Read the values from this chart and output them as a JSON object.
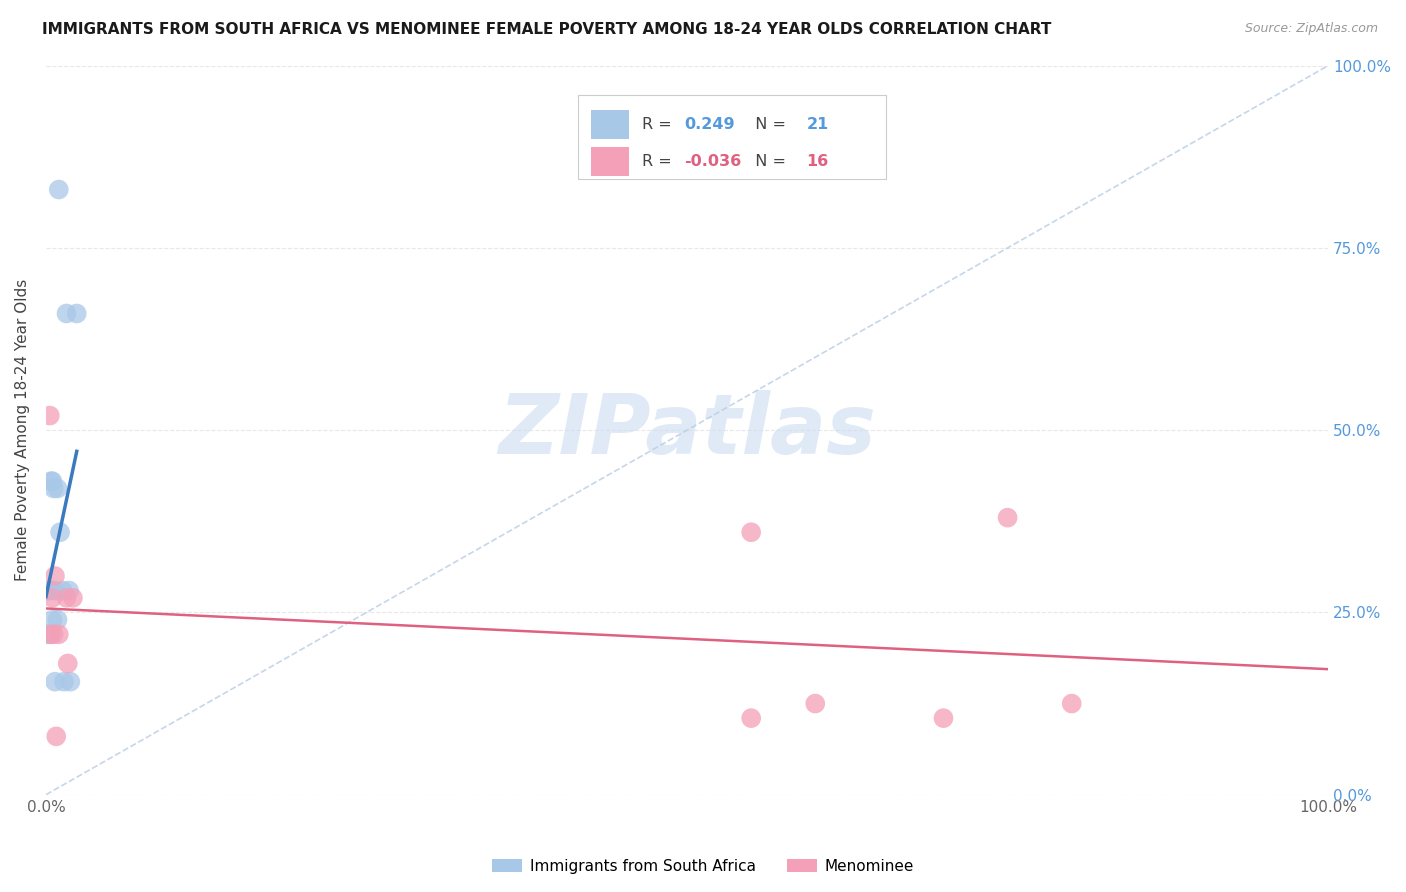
{
  "title": "IMMIGRANTS FROM SOUTH AFRICA VS MENOMINEE FEMALE POVERTY AMONG 18-24 YEAR OLDS CORRELATION CHART",
  "source": "Source: ZipAtlas.com",
  "ylabel": "Female Poverty Among 18-24 Year Olds",
  "legend_blue_r": "0.249",
  "legend_blue_n": "21",
  "legend_pink_r": "-0.036",
  "legend_pink_n": "16",
  "blue_color": "#a8c8e8",
  "blue_line_color": "#3a7abf",
  "pink_color": "#f4a0b8",
  "pink_line_color": "#e06080",
  "diag_color": "#b8cce4",
  "blue_scatter_x": [
    0.01,
    0.016,
    0.024,
    0.004,
    0.005,
    0.006,
    0.009,
    0.001,
    0.002,
    0.005,
    0.007,
    0.013,
    0.018,
    0.005,
    0.009,
    0.011,
    0.001,
    0.003,
    0.014,
    0.019,
    0.007
  ],
  "blue_scatter_y": [
    0.83,
    0.66,
    0.66,
    0.43,
    0.43,
    0.42,
    0.42,
    0.28,
    0.28,
    0.28,
    0.28,
    0.28,
    0.28,
    0.24,
    0.24,
    0.36,
    0.22,
    0.22,
    0.155,
    0.155,
    0.155
  ],
  "pink_scatter_x": [
    0.003,
    0.007,
    0.016,
    0.021,
    0.005,
    0.01,
    0.017,
    0.004,
    0.006,
    0.55,
    0.75,
    0.6,
    0.8,
    0.55,
    0.7,
    0.008
  ],
  "pink_scatter_y": [
    0.52,
    0.3,
    0.27,
    0.27,
    0.27,
    0.22,
    0.18,
    0.22,
    0.22,
    0.36,
    0.38,
    0.125,
    0.125,
    0.105,
    0.105,
    0.08
  ],
  "watermark_text": "ZIPatlas",
  "watermark_color": "#ccddf0",
  "background_color": "#ffffff",
  "grid_color": "#e8e8e8",
  "right_tick_color": "#5599dd",
  "tick_label_color": "#666666"
}
